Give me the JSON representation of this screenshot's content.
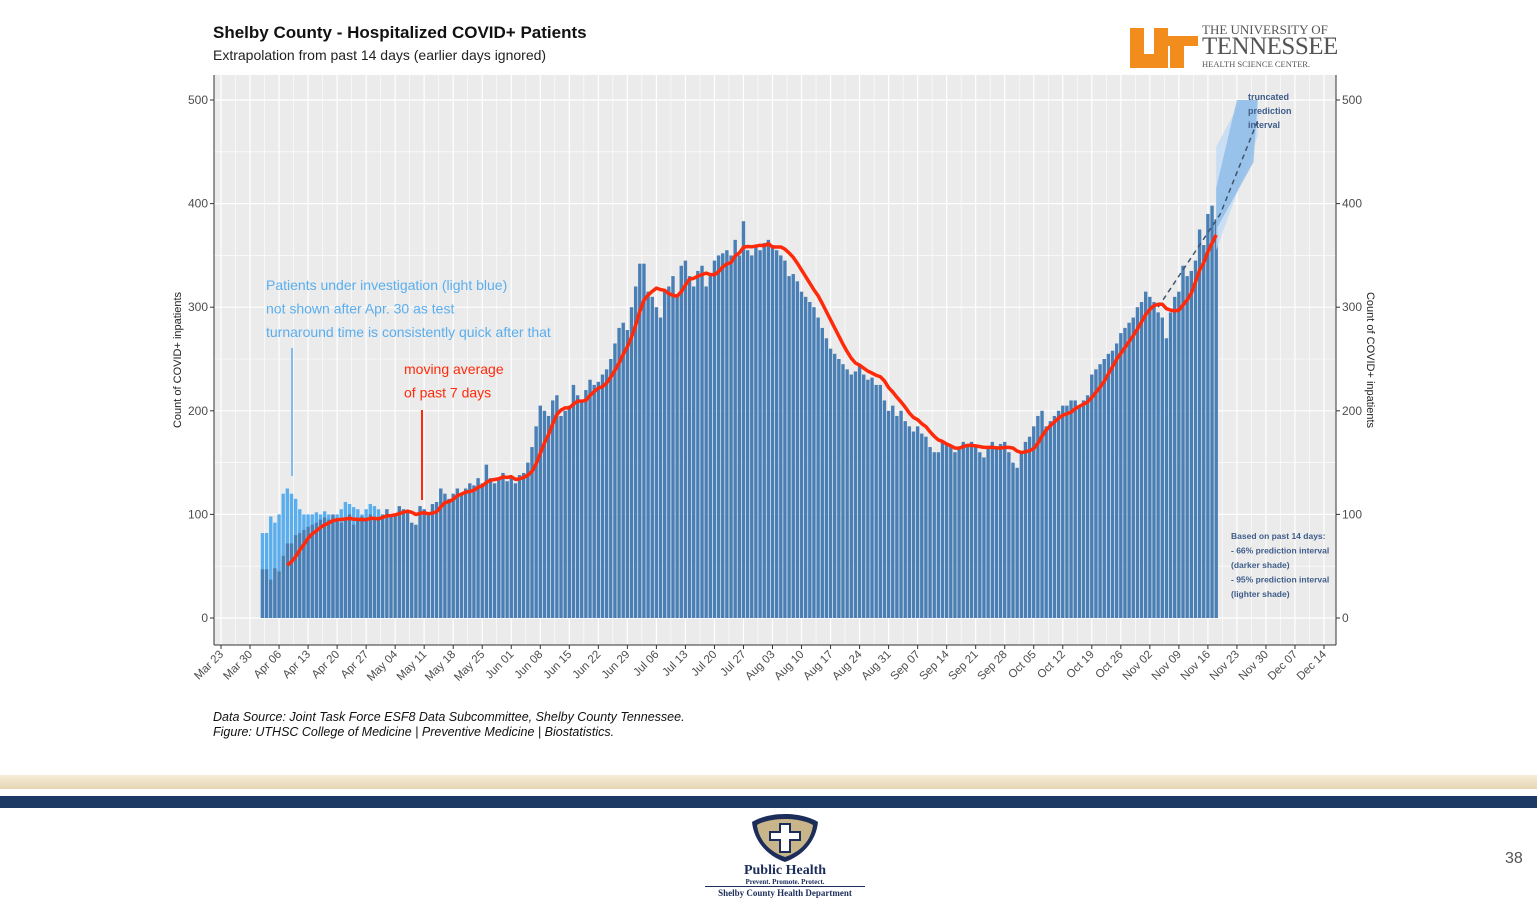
{
  "slide": {
    "page_number": "38",
    "ut_logo": {
      "line1": "THE UNIVERSITY OF",
      "line2": "TENNESSEE",
      "line3": "HEALTH SCIENCE CENTER."
    },
    "public_health_logo": {
      "line1": "Public Health",
      "line2": "Prevent. Promote. Protect.",
      "line3": "Shelby County Health Department"
    },
    "source_line1": "Data Source: Joint Task Force ESF8 Data Subcommittee, Shelby County Tennessee.",
    "source_line2": "Figure: UTHSC College of Medicine | Preventive Medicine | Biostatistics."
  },
  "chart_data": {
    "type": "bar",
    "title": "Shelby County - Hospitalized COVID+ Patients",
    "subtitle": "Extrapolation from past 14 days (earlier days ignored)",
    "ylabel": "Count of COVID+ inpatients",
    "ylabel_right": "Count of COVID+ inpatients",
    "ylim": [
      0,
      500
    ],
    "yticks": [
      0,
      100,
      200,
      300,
      400,
      500
    ],
    "xlim_days_from_mar23": [
      -4,
      270
    ],
    "xticks": [
      "Mar 23",
      "Mar 30",
      "Apr 06",
      "Apr 13",
      "Apr 20",
      "Apr 27",
      "May 04",
      "May 11",
      "May 18",
      "May 25",
      "Jun 01",
      "Jun 08",
      "Jun 15",
      "Jun 22",
      "Jun 29",
      "Jul 06",
      "Jul 13",
      "Jul 20",
      "Jul 27",
      "Aug 03",
      "Aug 10",
      "Aug 17",
      "Aug 24",
      "Aug 31",
      "Sep 07",
      "Sep 14",
      "Sep 21",
      "Sep 28",
      "Oct 05",
      "Oct 12",
      "Oct 19",
      "Oct 26",
      "Nov 02",
      "Nov 09",
      "Nov 16",
      "Nov 23",
      "Nov 30",
      "Dec 07",
      "Dec 14"
    ],
    "start_date": "Apr 02",
    "start_day_offset": 10,
    "confirmed": [
      47,
      47,
      37,
      48,
      45,
      60,
      72,
      72,
      80,
      82,
      85,
      88,
      90,
      92,
      95,
      97,
      95,
      100,
      95,
      92,
      95,
      100,
      90,
      95,
      98,
      95,
      100,
      95,
      97,
      100,
      105,
      100,
      100,
      108,
      105,
      104,
      92,
      90,
      108,
      105,
      100,
      110,
      112,
      125,
      120,
      115,
      120,
      125,
      120,
      125,
      130,
      128,
      135,
      130,
      148,
      135,
      130,
      135,
      140,
      132,
      135,
      130,
      138,
      140,
      150,
      165,
      185,
      205,
      200,
      195,
      210,
      215,
      195,
      200,
      205,
      225,
      215,
      210,
      220,
      230,
      225,
      228,
      235,
      240,
      250,
      265,
      280,
      285,
      278,
      300,
      320,
      342,
      342,
      315,
      310,
      300,
      290,
      315,
      320,
      330,
      310,
      340,
      345,
      330,
      320,
      335,
      340,
      320,
      330,
      345,
      350,
      352,
      355,
      350,
      365,
      350,
      383,
      355,
      350,
      360,
      355,
      362,
      365,
      360,
      355,
      350,
      345,
      330,
      332,
      325,
      315,
      310,
      305,
      300,
      290,
      280,
      270,
      260,
      255,
      250,
      245,
      240,
      235,
      238,
      245,
      235,
      230,
      232,
      225,
      225,
      210,
      200,
      205,
      195,
      200,
      190,
      185,
      180,
      185,
      178,
      175,
      165,
      160,
      160,
      170,
      168,
      165,
      160,
      165,
      170,
      168,
      170,
      165,
      160,
      155,
      165,
      170,
      165,
      168,
      170,
      160,
      150,
      145,
      160,
      170,
      175,
      185,
      195,
      200,
      185,
      190,
      195,
      200,
      205,
      205,
      210,
      210,
      205,
      210,
      215,
      235,
      240,
      245,
      250,
      255,
      258,
      265,
      275,
      280,
      285,
      290,
      300,
      305,
      315,
      310,
      305,
      295,
      290,
      270,
      295,
      310,
      315,
      340,
      330,
      335,
      345,
      375,
      360,
      390,
      398,
      385
    ],
    "pui_total_through_apr30": [
      82,
      82,
      98,
      92,
      100,
      120,
      125,
      120,
      115,
      105,
      100,
      100,
      100,
      102,
      100,
      103,
      100,
      97,
      100,
      105,
      112,
      110,
      107,
      105,
      100,
      105,
      110,
      108,
      105
    ],
    "moving_average_window": 7,
    "prediction": {
      "day_offsets": [
        226,
        241,
        250
      ],
      "mean": [
        300,
        390,
        480
      ],
      "pi66_low": [
        null,
        375,
        440
      ],
      "pi66_high": [
        null,
        405,
        500
      ],
      "pi95_low": [
        null,
        355,
        465
      ],
      "pi95_high": [
        null,
        420,
        500
      ]
    },
    "colors": {
      "confirmed": "#4a7fb5",
      "pui": "#5aaeee",
      "moving_average": "#ff2a0a",
      "annotation_blue": "#5aaeee",
      "panel": "#ebebeb",
      "pi66": "#8fbde8",
      "pi95": "#c3dcf4",
      "note": "#3e5d8a"
    },
    "annotations": {
      "pui_note": [
        "Patients under investigation (light blue)",
        "not shown after Apr. 30 as test",
        "turnaround time is consistently quick after that"
      ],
      "ma_note": [
        "moving average",
        "of past 7 days"
      ],
      "truncated": [
        "truncated",
        "prediction",
        "interval"
      ],
      "pi_note": [
        "Based on past 14 days:",
        "- 66% prediction interval",
        "(darker shade)",
        "- 95% prediction interval",
        "(lighter shade)"
      ]
    }
  }
}
